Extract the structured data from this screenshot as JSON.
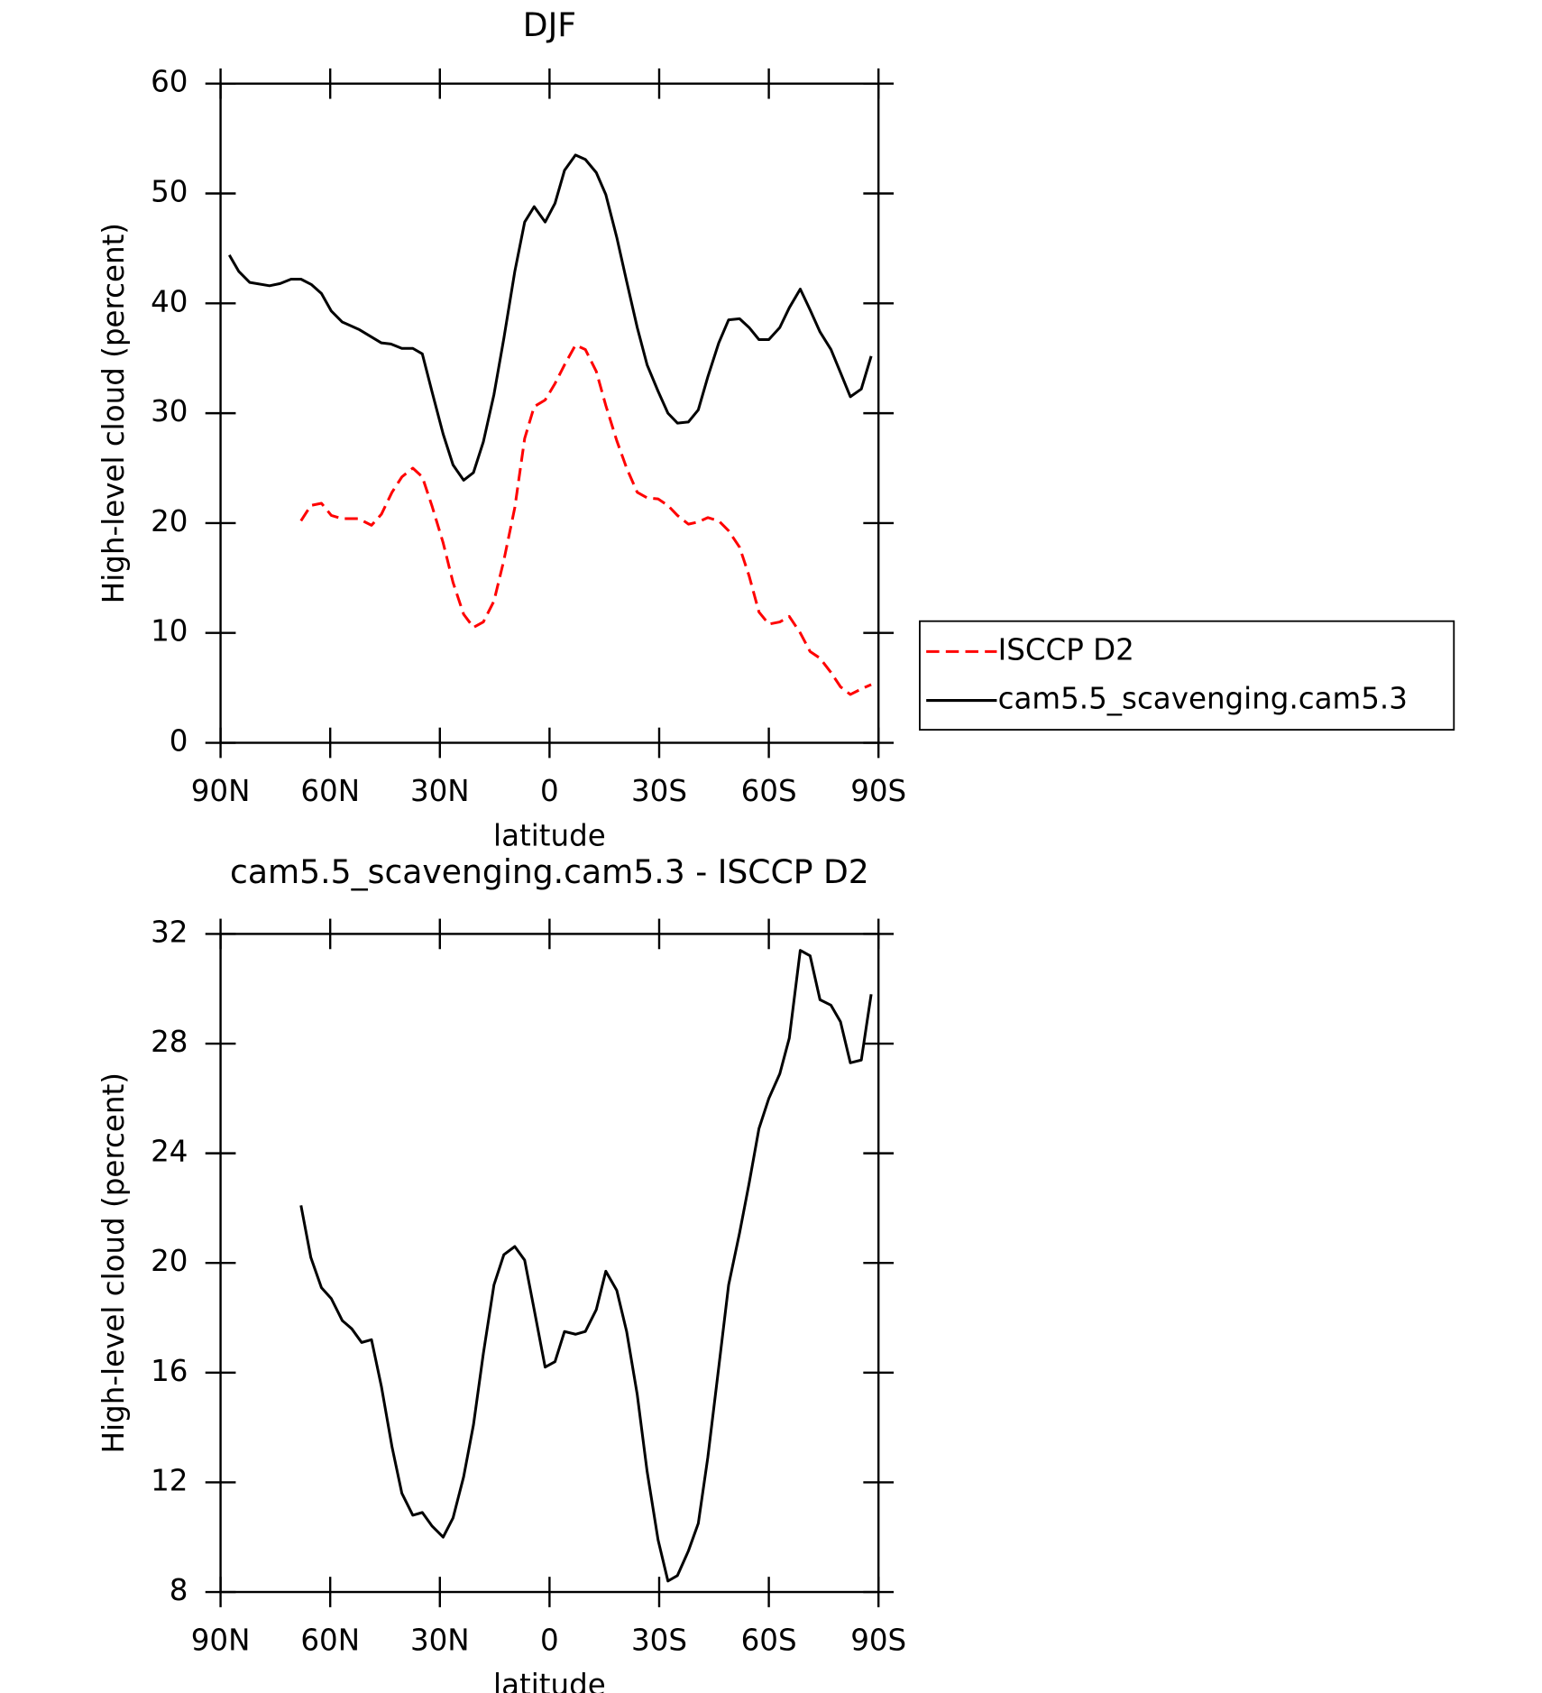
{
  "chart_data": [
    {
      "type": "line",
      "title": "DJF",
      "xlabel": "latitude",
      "ylabel": "High-level cloud (percent)",
      "xlim": [
        90,
        -90
      ],
      "ylim": [
        0,
        60
      ],
      "xticks": [
        {
          "value": 90,
          "label": "90N"
        },
        {
          "value": 60,
          "label": "60N"
        },
        {
          "value": 30,
          "label": "30N"
        },
        0,
        {
          "value": -30,
          "label": "30S"
        },
        {
          "value": -60,
          "label": "60S"
        },
        {
          "value": -90,
          "label": "90S"
        }
      ],
      "yticks": [
        0,
        10,
        20,
        30,
        40,
        50,
        60
      ],
      "legend": "right",
      "series": [
        {
          "name": "ISCCP D2",
          "color": "#ff0000",
          "dashed": true,
          "x": [
            68.0,
            65.3,
            62.4,
            59.7,
            56.7,
            52.3,
            48.7,
            46.0,
            43.1,
            40.4,
            37.4,
            34.8,
            32.1,
            29.1,
            26.4,
            23.5,
            20.8,
            18.1,
            15.2,
            12.5,
            9.5,
            6.8,
            4.2,
            1.2,
            -1.5,
            -4.1,
            -7.1,
            -9.8,
            -12.8,
            -15.4,
            -18.4,
            -21.1,
            -24.0,
            -26.7,
            -29.7,
            -32.4,
            -35.0,
            -38.0,
            -40.7,
            -43.3,
            -46.3,
            -49.0,
            -52.0,
            -54.6,
            -57.3,
            -60.0,
            -63.0,
            -65.6,
            -68.6,
            -71.3,
            -74.0,
            -77.0,
            -79.6,
            -82.3,
            -85.3,
            -88.0
          ],
          "values": [
            20.2,
            21.6,
            21.8,
            20.7,
            20.4,
            20.4,
            19.8,
            20.8,
            22.8,
            24.2,
            25.0,
            24.2,
            21.5,
            18.2,
            14.6,
            11.7,
            10.5,
            11.0,
            12.9,
            16.6,
            21.4,
            27.7,
            30.6,
            31.2,
            32.7,
            34.4,
            36.2,
            35.8,
            33.8,
            30.7,
            27.5,
            25.0,
            22.8,
            22.3,
            22.2,
            21.6,
            20.7,
            19.9,
            20.1,
            20.5,
            20.2,
            19.3,
            17.8,
            15.2,
            11.9,
            10.8,
            11.0,
            11.5,
            10.0,
            8.3,
            7.7,
            6.4,
            5.1,
            4.4,
            4.9,
            5.3
          ]
        },
        {
          "name": "cam5.5_scavenging.cam5.3",
          "color": "#000000",
          "dashed": false,
          "x": [
            87.6,
            85.0,
            82.0,
            76.6,
            73.7,
            70.7,
            68.0,
            65.1,
            62.4,
            59.7,
            56.7,
            52.0,
            46.0,
            43.4,
            40.4,
            37.4,
            34.8,
            32.1,
            29.1,
            26.4,
            23.5,
            20.8,
            18.1,
            15.2,
            12.5,
            9.5,
            6.8,
            4.2,
            1.2,
            -1.5,
            -4.1,
            -7.1,
            -9.8,
            -12.8,
            -15.4,
            -18.4,
            -21.1,
            -24.0,
            -26.7,
            -29.7,
            -32.4,
            -35.0,
            -38.0,
            -40.7,
            -43.3,
            -46.3,
            -49.0,
            -52.0,
            -54.6,
            -57.3,
            -60.0,
            -63.0,
            -65.6,
            -68.6,
            -71.3,
            -74.0,
            -77.0,
            -79.6,
            -82.3,
            -85.3,
            -88.0
          ],
          "values": [
            44.4,
            42.9,
            41.9,
            41.6,
            41.8,
            42.2,
            42.2,
            41.7,
            40.9,
            39.3,
            38.3,
            37.6,
            36.4,
            36.3,
            35.9,
            35.9,
            35.4,
            31.9,
            28.1,
            25.3,
            23.9,
            24.6,
            27.4,
            31.7,
            36.8,
            42.9,
            47.4,
            48.8,
            47.4,
            49.1,
            52.1,
            53.5,
            53.1,
            51.9,
            49.9,
            46.0,
            42.0,
            37.8,
            34.4,
            32.0,
            30.0,
            29.1,
            29.2,
            30.3,
            33.3,
            36.4,
            38.5,
            38.6,
            37.8,
            36.7,
            36.7,
            37.8,
            39.6,
            41.3,
            39.4,
            37.4,
            35.8,
            33.7,
            31.5,
            32.2,
            35.2
          ]
        }
      ]
    },
    {
      "type": "line",
      "title": "cam5.5_scavenging.cam5.3 - ISCCP D2",
      "xlabel": "latitude",
      "ylabel": "High-level cloud (percent)",
      "xlim": [
        90,
        -90
      ],
      "ylim": [
        8,
        32
      ],
      "xticks": [
        {
          "value": 90,
          "label": "90N"
        },
        {
          "value": 60,
          "label": "60N"
        },
        {
          "value": 30,
          "label": "30N"
        },
        0,
        {
          "value": -30,
          "label": "30S"
        },
        {
          "value": -60,
          "label": "60S"
        },
        {
          "value": -90,
          "label": "90S"
        }
      ],
      "yticks": [
        8,
        12,
        16,
        20,
        24,
        28,
        32
      ],
      "color": "#000000",
      "x": [
        68.0,
        65.3,
        62.4,
        59.7,
        56.7,
        54.1,
        51.4,
        48.7,
        46.0,
        43.1,
        40.4,
        37.4,
        34.8,
        32.1,
        29.1,
        26.4,
        23.5,
        20.8,
        18.1,
        15.2,
        12.5,
        9.5,
        6.8,
        4.2,
        1.2,
        -1.5,
        -4.1,
        -7.1,
        -9.8,
        -12.8,
        -15.4,
        -18.4,
        -21.1,
        -24.0,
        -26.7,
        -29.7,
        -32.4,
        -35.0,
        -38.0,
        -40.7,
        -43.3,
        -46.3,
        -49.0,
        -52.0,
        -54.6,
        -57.3,
        -60.0,
        -63.0,
        -65.6,
        -68.6,
        -71.3,
        -74.0,
        -77.0,
        -79.6,
        -82.3,
        -85.3,
        -88.0
      ],
      "values": [
        22.1,
        20.2,
        19.1,
        18.7,
        17.9,
        17.6,
        17.1,
        17.2,
        15.5,
        13.3,
        11.6,
        10.8,
        10.9,
        10.4,
        10.0,
        10.7,
        12.2,
        14.1,
        16.7,
        19.2,
        20.3,
        20.6,
        20.1,
        18.3,
        16.2,
        16.4,
        17.5,
        17.4,
        17.5,
        18.3,
        19.7,
        19.0,
        17.5,
        15.2,
        12.4,
        9.9,
        8.4,
        8.6,
        9.5,
        10.5,
        12.9,
        16.2,
        19.2,
        21.1,
        22.9,
        24.9,
        26.0,
        26.9,
        28.2,
        31.4,
        31.2,
        29.6,
        29.4,
        28.8,
        27.3,
        27.4,
        29.8
      ]
    }
  ]
}
